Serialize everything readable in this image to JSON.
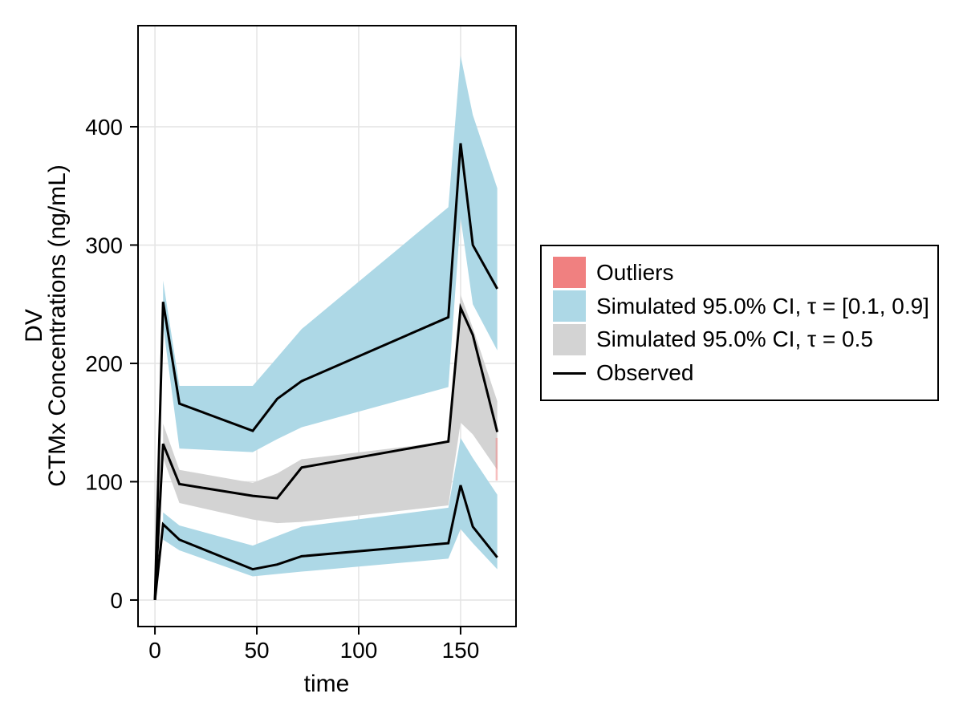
{
  "figure": {
    "background": "#ffffff"
  },
  "axis": {
    "xlabel": "time",
    "ylabel_line1": "DV",
    "ylabel_line2": "CTMx Concentrations (ng/mL)"
  },
  "legend": {
    "items": [
      {
        "key": "outliers",
        "swatch": "fill",
        "color": "#f08080",
        "label": "Outliers"
      },
      {
        "key": "sim-ci-outer",
        "swatch": "fill",
        "color": "#add8e6",
        "label": "Simulated 95.0% CI, τ = [0.1, 0.9]"
      },
      {
        "key": "sim-ci-median",
        "swatch": "fill",
        "color": "#d3d3d3",
        "label": "Simulated 95.0% CI, τ = 0.5"
      },
      {
        "key": "observed",
        "swatch": "line",
        "color": "#000000",
        "label": "Observed"
      }
    ]
  },
  "chart_data": {
    "type": "line",
    "title": "",
    "xlabel": "time",
    "ylabel": "DV\nCTMx Concentrations (ng/mL)",
    "xlim": [
      -8.3,
      177.2
    ],
    "ylim": [
      -22.4,
      485.4
    ],
    "xticks": [
      0,
      50,
      100,
      150
    ],
    "yticks": [
      0,
      100,
      200,
      300,
      400
    ],
    "grid": true,
    "legend_position": "right",
    "x": [
      0,
      4,
      12,
      48,
      60,
      72,
      144,
      150,
      156,
      168
    ],
    "series": [
      {
        "name": "observed_p90",
        "color": "#000000",
        "values": [
          0,
          252,
          166,
          143,
          170,
          185,
          239,
          386,
          300,
          263
        ]
      },
      {
        "name": "observed_p50",
        "color": "#000000",
        "values": [
          0,
          132,
          98,
          88,
          86,
          112,
          134,
          247,
          224,
          142
        ]
      },
      {
        "name": "observed_p10",
        "color": "#000000",
        "values": [
          0,
          64,
          51,
          26,
          30,
          37,
          48,
          97,
          62,
          36
        ]
      }
    ],
    "bands": [
      {
        "name": "sim_ci_tau_0.9",
        "color": "#add8e6",
        "x": [
          4,
          12,
          48,
          60,
          72,
          144,
          150,
          156,
          168
        ],
        "upper": [
          270,
          181,
          181,
          205,
          229,
          332,
          460,
          410,
          348
        ],
        "lower": [
          232,
          128,
          125,
          136,
          146,
          180,
          323,
          250,
          211
        ]
      },
      {
        "name": "sim_ci_tau_0.5",
        "color": "#d3d3d3",
        "x": [
          4,
          12,
          48,
          60,
          72,
          144,
          150,
          156,
          168
        ],
        "upper": [
          149,
          110,
          99,
          107,
          119,
          134,
          258,
          230,
          168
        ],
        "lower": [
          120,
          82,
          68,
          65,
          66,
          80,
          150,
          140,
          110
        ]
      },
      {
        "name": "sim_ci_tau_0.1",
        "color": "#add8e6",
        "x": [
          4,
          12,
          48,
          60,
          72,
          144,
          150,
          156,
          168
        ],
        "upper": [
          74,
          63,
          46,
          54,
          62,
          78,
          137,
          120,
          89
        ],
        "lower": [
          51,
          42,
          20,
          22,
          24,
          35,
          60,
          48,
          26
        ]
      }
    ],
    "outliers": [
      {
        "x": 167.7,
        "y_from": 101,
        "y_to": 137
      }
    ],
    "outlier_color": "#f08080"
  }
}
